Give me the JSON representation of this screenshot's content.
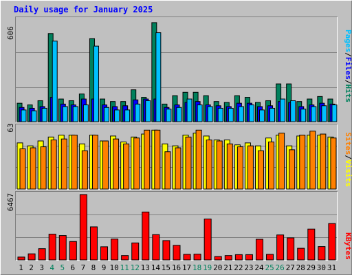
{
  "chart_data": [
    {
      "type": "bar",
      "title": "Daily usage for January 2025",
      "panel": "hits-files-pages",
      "ymax_label": "606",
      "ylim": [
        0,
        606
      ],
      "legend": {
        "pages": "Pages",
        "files": "Files",
        "hits": "Hits",
        "sep": "/"
      },
      "colors": {
        "hits": "#00805c",
        "files": "#0000ff",
        "pages": "#00c0ff"
      },
      "categories": [
        "1",
        "2",
        "3",
        "4",
        "5",
        "6",
        "7",
        "8",
        "9",
        "10",
        "11",
        "12",
        "13",
        "14",
        "15",
        "16",
        "17",
        "18",
        "19",
        "20",
        "21",
        "22",
        "23",
        "24",
        "25",
        "26",
        "27",
        "28",
        "29",
        "30",
        "31"
      ],
      "series": [
        {
          "name": "Hits",
          "values": [
            110,
            100,
            125,
            525,
            135,
            125,
            165,
            495,
            135,
            120,
            120,
            190,
            145,
            590,
            105,
            155,
            175,
            175,
            155,
            120,
            115,
            155,
            145,
            115,
            125,
            225,
            225,
            120,
            135,
            150,
            135
          ]
        },
        {
          "name": "Files",
          "values": [
            85,
            80,
            90,
            145,
            105,
            100,
            135,
            135,
            100,
            90,
            95,
            130,
            135,
            135,
            85,
            100,
            115,
            120,
            100,
            95,
            90,
            110,
            110,
            90,
            95,
            120,
            115,
            90,
            100,
            110,
            105
          ]
        },
        {
          "name": "Pages",
          "values": [
            70,
            65,
            80,
            480,
            90,
            90,
            100,
            450,
            85,
            70,
            70,
            105,
            125,
            530,
            75,
            85,
            135,
            100,
            90,
            80,
            80,
            90,
            100,
            70,
            80,
            135,
            125,
            75,
            90,
            95,
            100
          ]
        }
      ]
    },
    {
      "type": "bar",
      "panel": "visits-sites",
      "ymax_label": "63",
      "ylim": [
        0,
        63
      ],
      "legend": {
        "sites": "Sites",
        "visits": "Visits",
        "sep": "/"
      },
      "colors": {
        "visits": "#ffff00",
        "sites": "#ff8000"
      },
      "categories": [
        "1",
        "2",
        "3",
        "4",
        "5",
        "6",
        "7",
        "8",
        "9",
        "10",
        "11",
        "12",
        "13",
        "14",
        "15",
        "16",
        "17",
        "18",
        "19",
        "20",
        "21",
        "22",
        "23",
        "24",
        "25",
        "26",
        "27",
        "28",
        "29",
        "30",
        "31"
      ],
      "series": [
        {
          "name": "Visits",
          "values": [
            47,
            44,
            49,
            53,
            55,
            55,
            46,
            55,
            49,
            54,
            48,
            53,
            56,
            60,
            46,
            44,
            55,
            57,
            54,
            50,
            50,
            45,
            47,
            44,
            52,
            55,
            44,
            54,
            55,
            55,
            53
          ]
        },
        {
          "name": "Sites",
          "values": [
            41,
            42,
            43,
            50,
            51,
            55,
            39,
            55,
            49,
            51,
            46,
            52,
            60,
            60,
            38,
            42,
            53,
            60,
            50,
            49,
            46,
            43,
            44,
            39,
            48,
            57,
            40,
            55,
            59,
            56,
            52
          ]
        }
      ]
    },
    {
      "type": "bar",
      "panel": "kbytes",
      "ymax_label": "6467",
      "ylim": [
        0,
        6467
      ],
      "legend": {
        "kbytes": "KBytes"
      },
      "colors": {
        "kbytes": "#ff0000"
      },
      "categories": [
        "1",
        "2",
        "3",
        "4",
        "5",
        "6",
        "7",
        "8",
        "9",
        "10",
        "11",
        "12",
        "13",
        "14",
        "15",
        "16",
        "17",
        "18",
        "19",
        "20",
        "21",
        "22",
        "23",
        "24",
        "25",
        "26",
        "27",
        "28",
        "29",
        "30",
        "31"
      ],
      "series": [
        {
          "name": "KBytes",
          "values": [
            280,
            600,
            1110,
            2550,
            2410,
            1820,
            6467,
            3270,
            1300,
            2060,
            430,
            1680,
            4740,
            2500,
            1910,
            1440,
            550,
            570,
            4050,
            330,
            430,
            520,
            520,
            2040,
            550,
            2470,
            2180,
            1150,
            3050,
            1320,
            3600
          ]
        }
      ]
    }
  ],
  "day_labels": [
    "1",
    "2",
    "3",
    "4",
    "5",
    "6",
    "7",
    "8",
    "9",
    "10",
    "11",
    "12",
    "13",
    "14",
    "15",
    "16",
    "17",
    "18",
    "19",
    "20",
    "21",
    "22",
    "23",
    "24",
    "25",
    "26",
    "27",
    "28",
    "29",
    "30",
    "31"
  ],
  "weekend_days": [
    4,
    5,
    11,
    12,
    18,
    19,
    25,
    26
  ],
  "weekend_color": "#00805c",
  "weekday_color": "#000000"
}
